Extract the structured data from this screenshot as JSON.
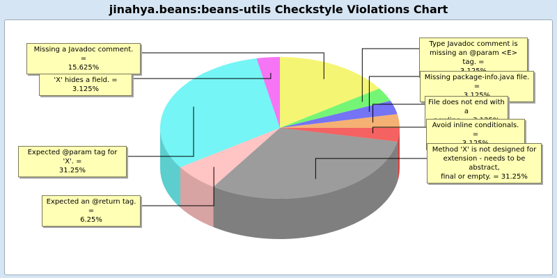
{
  "chart_data": {
    "type": "pie",
    "title": "jinahya.beans:beans-utils Checkstyle Violations Chart",
    "slices": [
      {
        "label": "Missing a Javadoc comment. = 15.625%",
        "value": 15.625,
        "color": "#f2f24d"
      },
      {
        "label": "Type Javadoc comment is missing an @param <E> tag. = 3.125%",
        "value": 3.125,
        "color": "#4ef24e"
      },
      {
        "label": "Missing package-info.java file. = 3.125%",
        "value": 3.125,
        "color": "#4d4df2"
      },
      {
        "label": "File does not end with a newline. = 3.125%",
        "value": 3.125,
        "color": "#f29a4d"
      },
      {
        "label": "Avoid inline conditionals. = 3.125%",
        "value": 3.125,
        "color": "#f23636"
      },
      {
        "label": "Method 'X' is not designed for extension - needs to be abstract, final or empty. = 31.25%",
        "value": 31.25,
        "color": "#808080"
      },
      {
        "label": "Expected an @return tag. = 6.25%",
        "value": 6.25,
        "color": "#ffb3b3"
      },
      {
        "label": "Expected @param tag for 'X'. = 31.25%",
        "value": 31.25,
        "color": "#4ef2f2"
      },
      {
        "label": "'X' hides a field. = 3.125%",
        "value": 3.125,
        "color": "#f24ef2"
      }
    ]
  },
  "labels": {
    "missing_javadoc": "Missing a Javadoc comment. =\n15.625%",
    "type_javadoc": "Type Javadoc comment is\nmissing an @param <E> tag. =\n3.125%",
    "package_info": "Missing package-info.java file. =\n3.125%",
    "newline": "File does not end with a\nnewline. = 3.125%",
    "inline_cond": "Avoid inline conditionals. =\n3.125%",
    "method_ext": "Method 'X' is not designed for\nextension - needs to be abstract,\nfinal or empty. = 31.25%",
    "return_tag": "Expected an @return tag. =\n6.25%",
    "param_tag": "Expected @param tag for 'X'. =\n31.25%",
    "hides_field": "'X' hides a field. = 3.125%"
  }
}
